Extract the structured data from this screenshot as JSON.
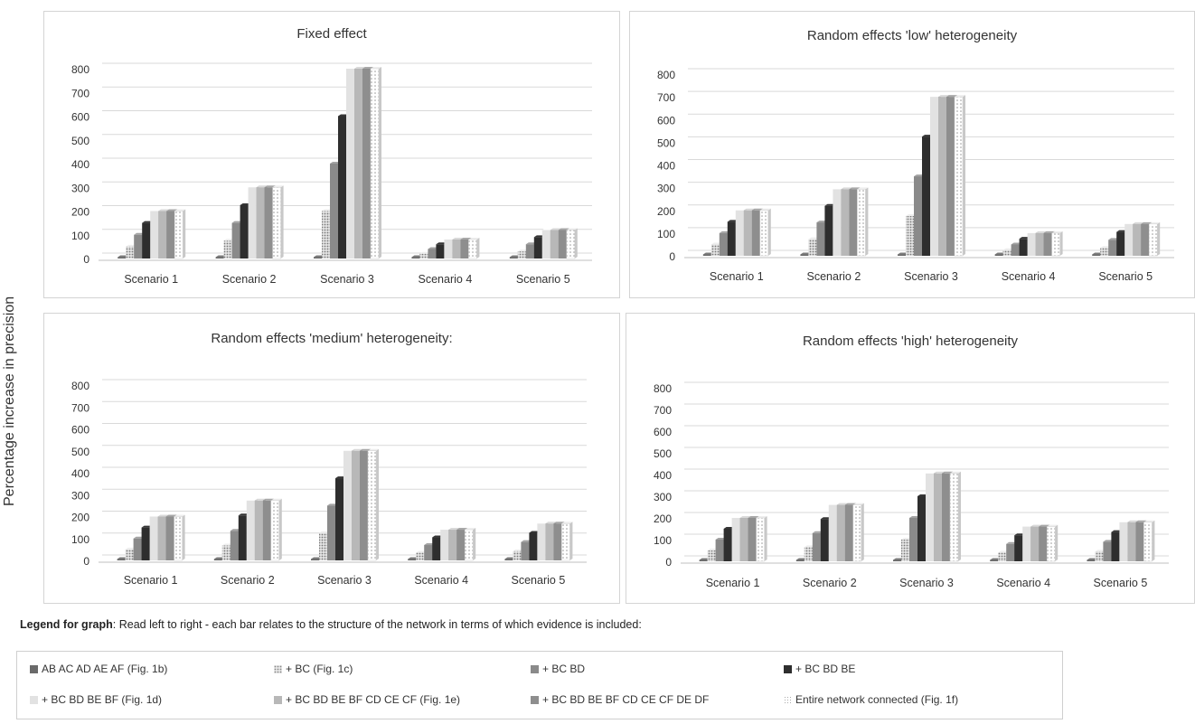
{
  "figure": {
    "ylabel": "Percentage increase in precision",
    "legend_note_bold": "Legend for graph",
    "legend_note_text": ": Read left to right - each bar relates to the structure of the network in terms of which evidence is included:"
  },
  "legend": [
    {
      "label": "AB AC AD AE AF (Fig. 1b)",
      "color": "#6a6a6a",
      "pattern": "solid"
    },
    {
      "label": "+ BC (Fig. 1c)",
      "color": "#b0b0b0",
      "pattern": "dots"
    },
    {
      "label": "+ BC BD",
      "color": "#8a8a8a",
      "pattern": "solid"
    },
    {
      "label": "+ BC BD BE",
      "color": "#2e2e2e",
      "pattern": "solid"
    },
    {
      "label": "+ BC BD BE BF (Fig. 1d)",
      "color": "#e2e2e2",
      "pattern": "solid"
    },
    {
      "label": "+ BC BD BE BF CD CE CF (Fig. 1e)",
      "color": "#b8b8b8",
      "pattern": "solid"
    },
    {
      "label": "+ BC BD BE BF CD CE CF DE DF",
      "color": "#8e8e8e",
      "pattern": "solid"
    },
    {
      "label": "Entire network connected (Fig. 1f)",
      "color": "#ffffff",
      "pattern": "dots-light"
    }
  ],
  "chart_data": [
    {
      "type": "bar",
      "title": "Fixed effect",
      "categories": [
        "Scenario 1",
        "Scenario 2",
        "Scenario 3",
        "Scenario 4",
        "Scenario 5"
      ],
      "yticks": [
        "0",
        "100",
        "200",
        "300",
        "400",
        "500",
        "600",
        "700",
        "800"
      ],
      "ylim": [
        0,
        800
      ],
      "series": [
        {
          "name": "AB AC AD AE AF (Fig. 1b)",
          "values": [
            0,
            0,
            0,
            0,
            0
          ]
        },
        {
          "name": "+ BC (Fig. 1c)",
          "values": [
            50,
            75,
            200,
            20,
            30
          ]
        },
        {
          "name": "+ BC BD",
          "values": [
            100,
            150,
            400,
            40,
            60
          ]
        },
        {
          "name": "+ BC BD BE",
          "values": [
            150,
            225,
            600,
            60,
            90
          ]
        },
        {
          "name": "+ BC BD BE BF (Fig. 1d)",
          "values": [
            200,
            300,
            800,
            80,
            120
          ]
        },
        {
          "name": "+ BC BD BE BF CD CE CF (Fig. 1e)",
          "values": [
            200,
            300,
            800,
            80,
            120
          ]
        },
        {
          "name": "+ BC BD BE BF CD CE CF DE DF",
          "values": [
            200,
            300,
            800,
            80,
            120
          ]
        },
        {
          "name": "Entire network connected (Fig. 1f)",
          "values": [
            200,
            300,
            800,
            80,
            120
          ]
        }
      ]
    },
    {
      "type": "bar",
      "title": "Random effects 'low' heterogeneity",
      "categories": [
        "Scenario 1",
        "Scenario 2",
        "Scenario 3",
        "Scenario 4",
        "Scenario 5"
      ],
      "yticks": [
        "0",
        "100",
        "200",
        "300",
        "400",
        "500",
        "600",
        "700",
        "800"
      ],
      "ylim": [
        0,
        800
      ],
      "series": [
        {
          "name": "AB AC AD AE AF (Fig. 1b)",
          "values": [
            0,
            0,
            0,
            0,
            0
          ]
        },
        {
          "name": "+ BC (Fig. 1c)",
          "values": [
            50,
            73,
            175,
            25,
            35
          ]
        },
        {
          "name": "+ BC BD",
          "values": [
            100,
            147,
            350,
            50,
            70
          ]
        },
        {
          "name": "+ BC BD BE",
          "values": [
            150,
            220,
            525,
            75,
            105
          ]
        },
        {
          "name": "+ BC BD BE BF (Fig. 1d)",
          "values": [
            200,
            293,
            700,
            100,
            140
          ]
        },
        {
          "name": "+ BC BD BE BF CD CE CF (Fig. 1e)",
          "values": [
            200,
            293,
            700,
            100,
            140
          ]
        },
        {
          "name": "+ BC BD BE BF CD CE CF DE DF",
          "values": [
            200,
            293,
            700,
            100,
            140
          ]
        },
        {
          "name": "Entire network connected (Fig. 1f)",
          "values": [
            200,
            293,
            700,
            100,
            140
          ]
        }
      ]
    },
    {
      "type": "bar",
      "title": "Random effects 'medium' heterogeneity:",
      "categories": [
        "Scenario 1",
        "Scenario 2",
        "Scenario 3",
        "Scenario 4",
        "Scenario 5"
      ],
      "yticks": [
        "0",
        "100",
        "200",
        "300",
        "400",
        "500",
        "600",
        "700",
        "800"
      ],
      "ylim": [
        0,
        800
      ],
      "series": [
        {
          "name": "AB AC AD AE AF (Fig. 1b)",
          "values": [
            0,
            0,
            0,
            0,
            0
          ]
        },
        {
          "name": "+ BC (Fig. 1c)",
          "values": [
            50,
            68,
            125,
            35,
            42
          ]
        },
        {
          "name": "+ BC BD",
          "values": [
            100,
            135,
            250,
            70,
            84
          ]
        },
        {
          "name": "+ BC BD BE",
          "values": [
            150,
            205,
            375,
            105,
            126
          ]
        },
        {
          "name": "+ BC BD BE BF (Fig. 1d)",
          "values": [
            200,
            273,
            500,
            140,
            168
          ]
        },
        {
          "name": "+ BC BD BE BF CD CE CF (Fig. 1e)",
          "values": [
            200,
            273,
            500,
            140,
            168
          ]
        },
        {
          "name": "+ BC BD BE BF CD CE CF DE DF",
          "values": [
            200,
            273,
            500,
            140,
            168
          ]
        },
        {
          "name": "Entire network connected (Fig. 1f)",
          "values": [
            200,
            273,
            500,
            140,
            168
          ]
        }
      ]
    },
    {
      "type": "bar",
      "title": "Random effects 'high' heterogeneity",
      "categories": [
        "Scenario 1",
        "Scenario 2",
        "Scenario 3",
        "Scenario 4",
        "Scenario 5"
      ],
      "yticks": [
        "0",
        "100",
        "200",
        "300",
        "400",
        "500",
        "600",
        "700",
        "800"
      ],
      "ylim": [
        0,
        800
      ],
      "series": [
        {
          "name": "AB AC AD AE AF (Fig. 1b)",
          "values": [
            0,
            0,
            0,
            0,
            0
          ]
        },
        {
          "name": "+ BC (Fig. 1c)",
          "values": [
            50,
            65,
            100,
            40,
            45
          ]
        },
        {
          "name": "+ BC BD",
          "values": [
            100,
            130,
            200,
            80,
            90
          ]
        },
        {
          "name": "+ BC BD BE",
          "values": [
            150,
            195,
            300,
            120,
            135
          ]
        },
        {
          "name": "+ BC BD BE BF (Fig. 1d)",
          "values": [
            200,
            260,
            405,
            160,
            180
          ]
        },
        {
          "name": "+ BC BD BE BF CD CE CF (Fig. 1e)",
          "values": [
            200,
            260,
            405,
            160,
            180
          ]
        },
        {
          "name": "+ BC BD BE BF CD CE CF DE DF",
          "values": [
            200,
            260,
            405,
            160,
            180
          ]
        },
        {
          "name": "Entire network connected (Fig. 1f)",
          "values": [
            200,
            260,
            405,
            160,
            180
          ]
        }
      ]
    }
  ]
}
